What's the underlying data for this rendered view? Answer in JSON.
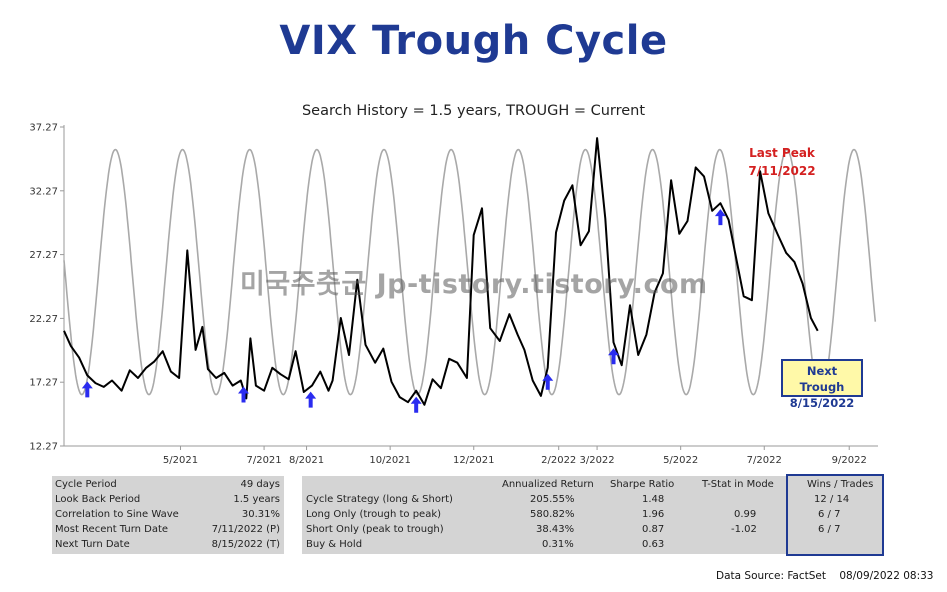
{
  "title": "VIX Trough Cycle",
  "subtitle": "Search History = 1.5 years, TROUGH = Current",
  "watermark": "미국주춧군 Jp-tistory.tistory.com",
  "annotations": {
    "last_peak_label": "Last Peak",
    "last_peak_date": "7/11/2022",
    "next_trough_label": "Next Trough",
    "next_trough_date": "8/15/2022"
  },
  "colors": {
    "title": "#1f3a93",
    "vix_line": "#000000",
    "sine_line": "#a9a9a9",
    "arrow": "#2a2cf0",
    "peak_text": "#d42020",
    "trough_box_fill": "#fff9a8",
    "panel": "#d4d4d4"
  },
  "chart_data": {
    "type": "line",
    "title": "Search History = 1.5 years, TROUGH = Current",
    "xlabel": "",
    "ylabel": "",
    "ylim": [
      12.27,
      37.27
    ],
    "y_ticks": [
      "12.27",
      "17.27",
      "22.27",
      "27.27",
      "32.27",
      "37.27"
    ],
    "x_range": [
      "2021-02-05",
      "2022-09-22"
    ],
    "x_ticks": [
      "5/2021",
      "7/2021",
      "8/2021",
      "10/2021",
      "12/2021",
      "2/2022",
      "3/2022",
      "5/2022",
      "7/2022",
      "9/2022"
    ],
    "x_tick_dates": [
      "2021-05-01",
      "2021-07-01",
      "2021-08-01",
      "2021-10-01",
      "2021-12-01",
      "2022-02-01",
      "2022-03-01",
      "2022-05-01",
      "2022-07-01",
      "2022-09-01"
    ],
    "grid": false,
    "legend": "none",
    "series": [
      {
        "role": "vix",
        "x": [
          "2021-02-05",
          "2021-02-10",
          "2021-02-16",
          "2021-02-22",
          "2021-02-28",
          "2021-03-06",
          "2021-03-12",
          "2021-03-19",
          "2021-03-25",
          "2021-03-31",
          "2021-04-06",
          "2021-04-12",
          "2021-04-18",
          "2021-04-24",
          "2021-04-30",
          "2021-05-06",
          "2021-05-12",
          "2021-05-17",
          "2021-05-21",
          "2021-05-27",
          "2021-06-02",
          "2021-06-08",
          "2021-06-14",
          "2021-06-18",
          "2021-06-21",
          "2021-06-25",
          "2021-07-01",
          "2021-07-07",
          "2021-07-13",
          "2021-07-19",
          "2021-07-24",
          "2021-07-30",
          "2021-08-05",
          "2021-08-11",
          "2021-08-17",
          "2021-08-20",
          "2021-08-26",
          "2021-09-01",
          "2021-09-07",
          "2021-09-13",
          "2021-09-20",
          "2021-09-26",
          "2021-10-02",
          "2021-10-08",
          "2021-10-14",
          "2021-10-20",
          "2021-10-26",
          "2021-11-01",
          "2021-11-07",
          "2021-11-13",
          "2021-11-19",
          "2021-11-26",
          "2021-12-01",
          "2021-12-07",
          "2021-12-13",
          "2021-12-20",
          "2021-12-27",
          "2022-01-02",
          "2022-01-07",
          "2022-01-13",
          "2022-01-19",
          "2022-01-24",
          "2022-01-30",
          "2022-02-05",
          "2022-02-11",
          "2022-02-17",
          "2022-02-23",
          "2022-03-01",
          "2022-03-07",
          "2022-03-13",
          "2022-03-19",
          "2022-03-25",
          "2022-03-31",
          "2022-04-06",
          "2022-04-12",
          "2022-04-18",
          "2022-04-24",
          "2022-04-30",
          "2022-05-06",
          "2022-05-12",
          "2022-05-18",
          "2022-05-24",
          "2022-05-30",
          "2022-06-05",
          "2022-06-11",
          "2022-06-16",
          "2022-06-22",
          "2022-06-28",
          "2022-07-04",
          "2022-07-11",
          "2022-07-17",
          "2022-07-23",
          "2022-07-29",
          "2022-08-04",
          "2022-08-09"
        ],
        "values": [
          21.3,
          20.1,
          19.2,
          17.8,
          17.2,
          16.9,
          17.4,
          16.6,
          18.2,
          17.6,
          18.4,
          18.9,
          19.7,
          18.1,
          17.6,
          27.6,
          19.8,
          21.6,
          18.3,
          17.6,
          18.0,
          17.0,
          17.4,
          16.0,
          20.7,
          17.0,
          16.6,
          18.4,
          17.9,
          17.5,
          19.7,
          16.5,
          17.0,
          18.1,
          16.6,
          17.4,
          22.3,
          19.4,
          25.3,
          20.2,
          18.8,
          19.9,
          17.3,
          16.1,
          15.7,
          16.6,
          15.5,
          17.5,
          16.8,
          19.1,
          18.8,
          17.6,
          28.8,
          30.9,
          21.5,
          20.5,
          22.6,
          21.0,
          19.8,
          17.4,
          16.2,
          18.4,
          29.0,
          31.5,
          32.7,
          28.0,
          29.1,
          36.4,
          30.1,
          20.4,
          18.6,
          23.3,
          19.4,
          21.0,
          24.3,
          25.8,
          33.1,
          28.9,
          29.9,
          34.1,
          33.4,
          30.7,
          31.3,
          30.0,
          26.7,
          24.0,
          23.7,
          33.8,
          30.5,
          28.8,
          27.4,
          26.7,
          25.0,
          22.3,
          21.3
        ]
      },
      {
        "role": "sine_cycle",
        "period_days": 49,
        "peak_value": 35.5,
        "trough_value": 16.3,
        "x_start": "2021-02-05",
        "x_end": "2022-09-20",
        "first_trough": "2021-02-18",
        "last_peak": "2022-07-11",
        "next_trough": "2022-08-15"
      }
    ],
    "trough_arrows": [
      "2021-02-22",
      "2021-06-16",
      "2021-08-04",
      "2021-10-20",
      "2022-01-24",
      "2022-03-13",
      "2022-05-30"
    ]
  },
  "stats_left": [
    {
      "label": "Cycle Period",
      "value": "49 days"
    },
    {
      "label": "Look Back Period",
      "value": "1.5 years"
    },
    {
      "label": "Correlation to Sine Wave",
      "value": "30.31%"
    },
    {
      "label": "Most Recent Turn Date",
      "value": "7/11/2022 (P)"
    },
    {
      "label": "Next Turn Date",
      "value": "8/15/2022 (T)"
    }
  ],
  "stats_right": {
    "headers": [
      "Annualized Return",
      "Sharpe Ratio",
      "T-Stat in Mode",
      "Wins / Trades"
    ],
    "rows": [
      {
        "label": "Cycle Strategy (long & Short)",
        "ret": "205.55%",
        "sharpe": "1.48",
        "tstat": "",
        "wins": "12 / 14"
      },
      {
        "label": "Long Only (trough to peak)",
        "ret": "580.82%",
        "sharpe": "1.96",
        "tstat": "0.99",
        "wins": "6 / 7"
      },
      {
        "label": "Short Only (peak to trough)",
        "ret": "38.43%",
        "sharpe": "0.87",
        "tstat": "-1.02",
        "wins": "6 / 7"
      },
      {
        "label": "Buy & Hold",
        "ret": "0.31%",
        "sharpe": "0.63",
        "tstat": "",
        "wins": ""
      }
    ]
  },
  "source": "Data Source: FactSet",
  "source_datetime": "08/09/2022 08:33"
}
